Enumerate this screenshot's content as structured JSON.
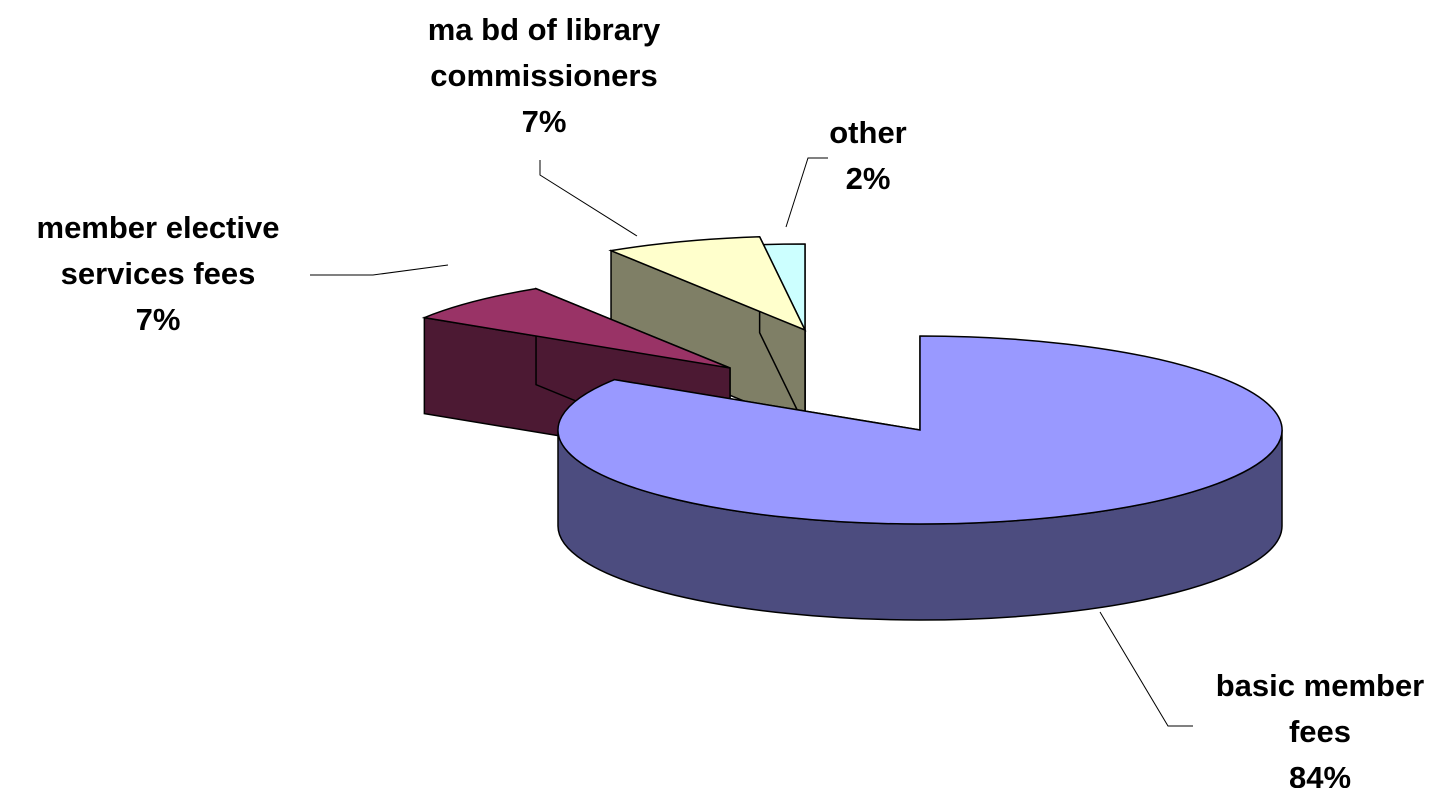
{
  "chart_data": {
    "type": "pie",
    "style": "3d-exploded",
    "title": "",
    "legend": "none",
    "slices": [
      {
        "name": "basic member fees",
        "label_lines": [
          "basic member",
          "fees"
        ],
        "value": 84,
        "pct_label": "84%",
        "color_top": "#9999ff",
        "color_side": "#4c4c7f"
      },
      {
        "name": "member elective services fees",
        "label_lines": [
          "member elective",
          "services fees"
        ],
        "value": 7,
        "pct_label": "7%",
        "color_top": "#993366",
        "color_side": "#4c1933"
      },
      {
        "name": "ma bd of library commissioners",
        "label_lines": [
          "ma bd of library",
          "commissioners"
        ],
        "value": 7,
        "pct_label": "7%",
        "color_top": "#ffffcc",
        "color_side": "#7f7f66"
      },
      {
        "name": "other",
        "label_lines": [
          "other"
        ],
        "value": 2,
        "pct_label": "2%",
        "color_top": "#ccffff",
        "color_side": "#667f7f"
      }
    ]
  }
}
